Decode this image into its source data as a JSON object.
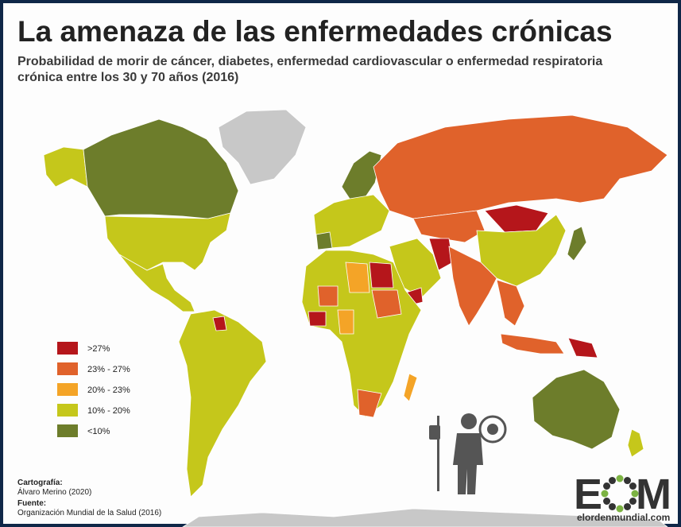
{
  "header": {
    "title": "La amenaza de las enfermedades crónicas",
    "subtitle": [
      "Probabilidad de morir de cáncer, diabetes, enfermedad cardiovascular o enfermedad respiratoria",
      "crónica entre los 30 y 70 años (2016)"
    ]
  },
  "legend": [
    {
      "label": ">27%",
      "color": "#b5161b"
    },
    {
      "label": "23% - 27%",
      "color": "#e0622b"
    },
    {
      "label": "20% - 23%",
      "color": "#f4a427"
    },
    {
      "label": "10% - 20%",
      "color": "#c5c71b"
    },
    {
      "label": "<10%",
      "color": "#6d7d2b"
    }
  ],
  "credits": {
    "cartography_label": "Cartografía:",
    "cartography": "Álvaro Merino (2020)",
    "source_label": "Fuente:",
    "source": "Organización Mundial de la Salud (2016)"
  },
  "logo": {
    "left": "E",
    "right": "M",
    "url": "elordenmundial.com"
  }
}
